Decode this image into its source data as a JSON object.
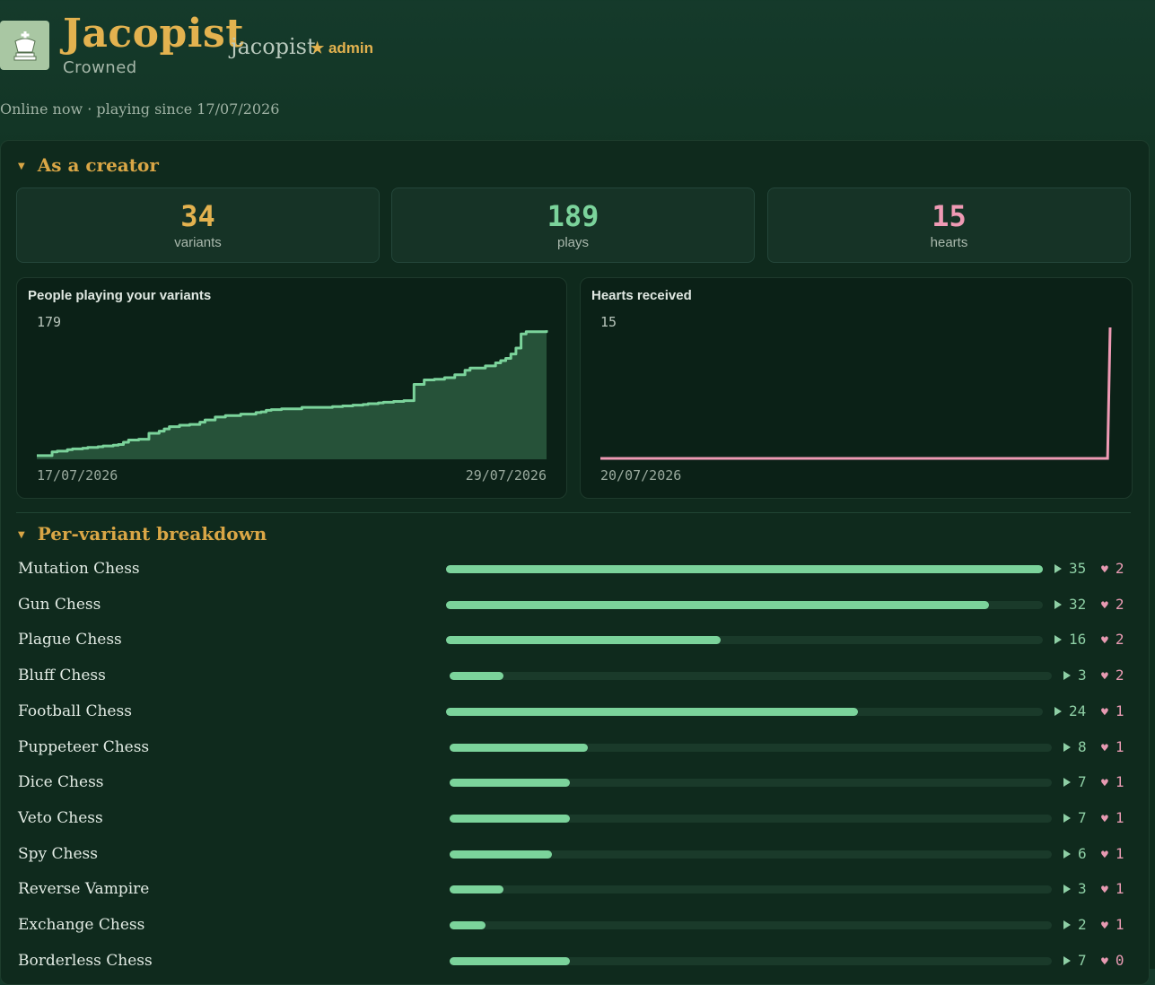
{
  "profile": {
    "display_name": "Jacopist",
    "rank": "Crowned",
    "username": "jacopist",
    "role_badge": "★ admin",
    "status": "Online now · playing since 17/07/2026",
    "avatar_icon": "chess-king-icon"
  },
  "creator": {
    "section_title": "As a creator",
    "stats": [
      {
        "value": "34",
        "label": "variants",
        "color": "#e3b24f"
      },
      {
        "value": "189",
        "label": "plays",
        "color": "#7bd39b"
      },
      {
        "value": "15",
        "label": "hearts",
        "color": "#ef9ab4"
      }
    ]
  },
  "chart_data": [
    {
      "type": "area",
      "title": "People playing your variants",
      "ymax_label": "179",
      "x_start": "17/07/2026",
      "x_end": "29/07/2026",
      "ylim": [
        0,
        179
      ],
      "color": "#7bd39b",
      "x": [
        0,
        3,
        4,
        6,
        7,
        9,
        10,
        12,
        13,
        15,
        16,
        17,
        18,
        20,
        22,
        24,
        25,
        26,
        28,
        30,
        32,
        33,
        35,
        37,
        40,
        43,
        44,
        45,
        46,
        48,
        50,
        52,
        54,
        55,
        58,
        60,
        62,
        64,
        65,
        67,
        68,
        70,
        72,
        74,
        76,
        78,
        80,
        82,
        84,
        85,
        88,
        90,
        91,
        92,
        93,
        94,
        95,
        96,
        100
      ],
      "values": [
        5,
        10,
        11,
        13,
        14,
        15,
        16,
        17,
        18,
        19,
        20,
        23,
        26,
        27,
        35,
        38,
        41,
        44,
        46,
        47,
        50,
        53,
        57,
        59,
        61,
        63,
        64,
        66,
        67,
        68,
        68,
        70,
        70,
        70,
        71,
        72,
        73,
        74,
        75,
        76,
        77,
        78,
        79,
        101,
        107,
        108,
        110,
        114,
        120,
        123,
        126,
        130,
        133,
        136,
        142,
        150,
        169,
        172,
        174
      ]
    },
    {
      "type": "line",
      "title": "Hearts received",
      "ymax_label": "15",
      "x_start": "20/07/2026",
      "ylim": [
        0,
        15
      ],
      "color": "#ef9ab4",
      "x": [
        0,
        99.5,
        100
      ],
      "values": [
        0,
        0,
        15
      ]
    }
  ],
  "breakdown": {
    "section_title": "Per-variant breakdown",
    "rows": [
      {
        "name": "Mutation Chess",
        "plays": "35",
        "hearts": "2",
        "fraction": 1.0
      },
      {
        "name": "Gun Chess",
        "plays": "32",
        "hearts": "2",
        "fraction": 0.91
      },
      {
        "name": "Plague Chess",
        "plays": "16",
        "hearts": "2",
        "fraction": 0.46
      },
      {
        "name": "Bluff Chess",
        "plays": "3",
        "hearts": "2",
        "fraction": 0.09
      },
      {
        "name": "Football Chess",
        "plays": "24",
        "hearts": "1",
        "fraction": 0.69
      },
      {
        "name": "Puppeteer Chess",
        "plays": "8",
        "hearts": "1",
        "fraction": 0.23
      },
      {
        "name": "Dice Chess",
        "plays": "7",
        "hearts": "1",
        "fraction": 0.2
      },
      {
        "name": "Veto Chess",
        "plays": "7",
        "hearts": "1",
        "fraction": 0.2
      },
      {
        "name": "Spy Chess",
        "plays": "6",
        "hearts": "1",
        "fraction": 0.17
      },
      {
        "name": "Reverse Vampire",
        "plays": "3",
        "hearts": "1",
        "fraction": 0.09
      },
      {
        "name": "Exchange Chess",
        "plays": "2",
        "hearts": "1",
        "fraction": 0.06
      },
      {
        "name": "Borderless Chess",
        "plays": "7",
        "hearts": "0",
        "fraction": 0.2
      }
    ]
  }
}
